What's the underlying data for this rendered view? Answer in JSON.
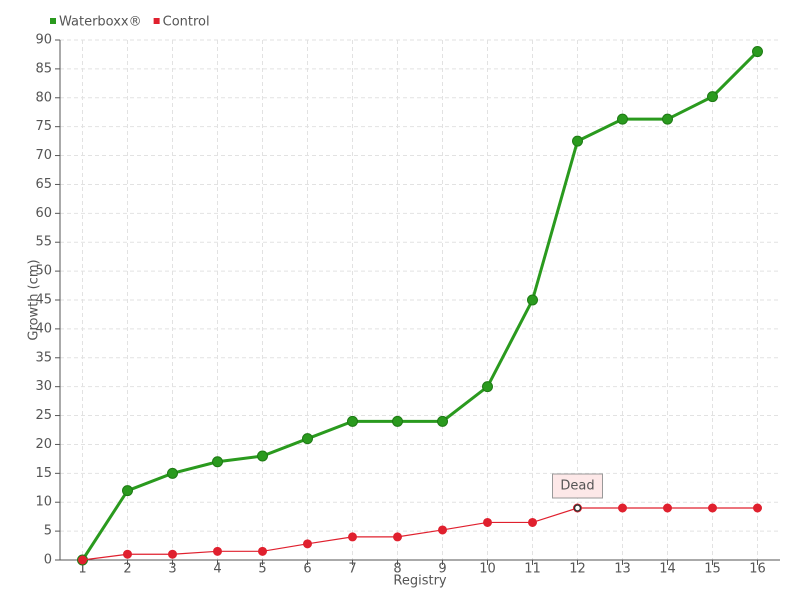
{
  "chart_data": {
    "type": "line",
    "xlabel": "Registry",
    "ylabel": "Growth (cm)",
    "categories": [
      "1",
      "2",
      "3",
      "4",
      "5",
      "6",
      "7",
      "8",
      "9",
      "10",
      "11",
      "12",
      "13",
      "14",
      "15",
      "16"
    ],
    "series": [
      {
        "name": "Waterboxx®",
        "color": "#2a9a1e",
        "values": [
          0,
          12,
          15,
          17,
          18,
          21,
          24,
          24,
          24,
          30,
          45,
          72.5,
          76.3,
          76.3,
          80.2,
          88
        ]
      },
      {
        "name": "Control",
        "color": "#e0202e",
        "values": [
          0,
          1,
          1,
          1.5,
          1.5,
          2.8,
          4,
          4,
          5.2,
          6.5,
          6.5,
          9,
          9,
          9,
          9,
          9
        ]
      }
    ],
    "ylim": [
      0,
      90
    ],
    "yticks": [
      0,
      5,
      10,
      15,
      20,
      25,
      30,
      35,
      40,
      45,
      50,
      55,
      60,
      65,
      70,
      75,
      80,
      85,
      90
    ],
    "grid": true,
    "legend": "top-left",
    "annotations": [
      {
        "label": "Dead",
        "series": "Control",
        "category": "12"
      }
    ]
  }
}
